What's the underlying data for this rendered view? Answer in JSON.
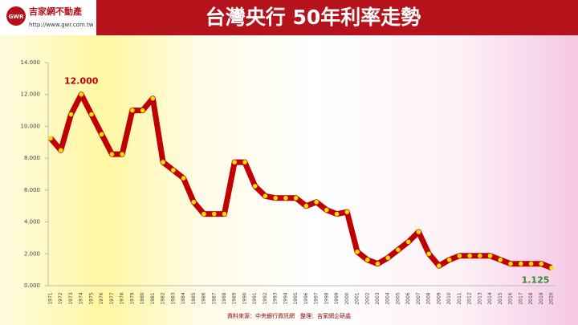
{
  "header": {
    "brand": "吉家網不動產",
    "url": "http://www.gwr.com.tw",
    "logo": "GWR"
  },
  "chart_data": {
    "type": "line",
    "title": "台灣央行 50年利率走勢",
    "categories": [
      "1971",
      "1972",
      "1973",
      "1974",
      "1975",
      "1976",
      "1977",
      "1978",
      "1979",
      "1980",
      "1981",
      "1982",
      "1983",
      "1984",
      "1985",
      "1986",
      "1987",
      "1988",
      "1989",
      "1990",
      "1991",
      "1992",
      "1993",
      "1994",
      "1995",
      "1996",
      "1997",
      "1998",
      "1999",
      "2000",
      "2001",
      "2002",
      "2003",
      "2004",
      "2005",
      "2006",
      "2007",
      "2008",
      "2009",
      "2010",
      "2011",
      "2012",
      "2013",
      "2014",
      "2015",
      "2016",
      "2017",
      "2018",
      "2019",
      "2020"
    ],
    "values": [
      9.25,
      8.5,
      10.75,
      12.0,
      10.75,
      9.5,
      8.25,
      8.25,
      11.0,
      11.0,
      11.75,
      7.75,
      7.25,
      6.75,
      5.25,
      4.5,
      4.5,
      4.5,
      7.75,
      7.75,
      6.25,
      5.625,
      5.5,
      5.5,
      5.5,
      5.0,
      5.25,
      4.75,
      4.5,
      4.625,
      2.125,
      1.625,
      1.375,
      1.75,
      2.25,
      2.75,
      3.375,
      2.0,
      1.25,
      1.625,
      1.875,
      1.875,
      1.875,
      1.875,
      1.625,
      1.375,
      1.375,
      1.375,
      1.375,
      1.125
    ],
    "value_labels": [
      null,
      null,
      null,
      "12.000",
      null,
      null,
      null,
      null,
      null,
      null,
      null,
      null,
      null,
      null,
      null,
      null,
      null,
      null,
      null,
      null,
      null,
      null,
      null,
      null,
      null,
      null,
      null,
      null,
      null,
      null,
      null,
      null,
      null,
      null,
      null,
      null,
      null,
      null,
      null,
      null,
      null,
      null,
      null,
      null,
      null,
      null,
      null,
      null,
      null,
      "1.125"
    ],
    "color": "#c00000",
    "marker_color": "#f5e000",
    "ylim": [
      0,
      14
    ],
    "yticks": [
      {
        "value": 0,
        "label": "0.000"
      },
      {
        "value": 2,
        "label": "2.000"
      },
      {
        "value": 4,
        "label": "4.000"
      },
      {
        "value": 6,
        "label": "6.000"
      },
      {
        "value": 8,
        "label": "8.000"
      },
      {
        "value": 10,
        "label": "10.000"
      },
      {
        "value": 12,
        "label": "12.000"
      },
      {
        "value": 14,
        "label": "14.000"
      }
    ],
    "grid": false,
    "source": "資料來源：中央銀行資訊網　整理：吉家網企研處"
  }
}
